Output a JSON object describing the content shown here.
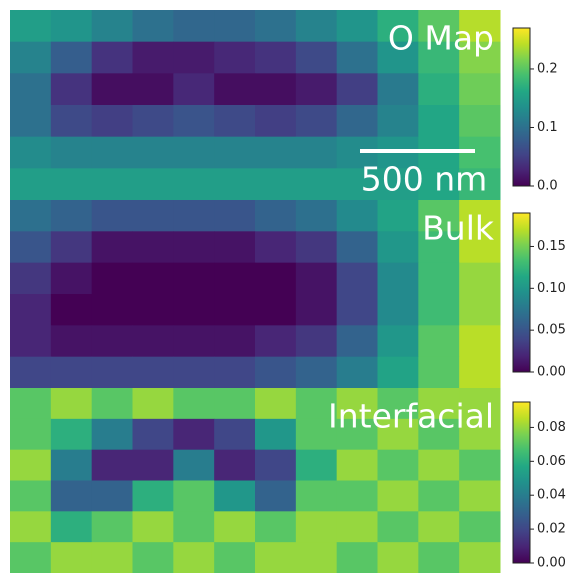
{
  "chart_data": [
    {
      "type": "heatmap",
      "title": "O Map",
      "scale_bar": "500 nm",
      "colormap": "viridis",
      "zlim": [
        0,
        0.27
      ],
      "zticks": [
        {
          "value": 0,
          "label": "0.0"
        },
        0.1,
        0.2
      ],
      "values": [
        [
          0.15,
          0.14,
          0.12,
          0.1,
          0.09,
          0.09,
          0.1,
          0.12,
          0.14,
          0.17,
          0.2,
          0.24
        ],
        [
          0.12,
          0.08,
          0.04,
          0.02,
          0.02,
          0.03,
          0.04,
          0.06,
          0.1,
          0.14,
          0.18,
          0.22
        ],
        [
          0.1,
          0.04,
          0.01,
          0.01,
          0.03,
          0.01,
          0.01,
          0.02,
          0.05,
          0.11,
          0.17,
          0.21
        ],
        [
          0.1,
          0.06,
          0.05,
          0.06,
          0.07,
          0.06,
          0.05,
          0.06,
          0.09,
          0.12,
          0.16,
          0.2
        ],
        [
          0.13,
          0.12,
          0.12,
          0.12,
          0.12,
          0.12,
          0.12,
          0.12,
          0.13,
          0.14,
          0.16,
          0.19
        ],
        [
          0.15,
          0.15,
          0.15,
          0.15,
          0.15,
          0.15,
          0.15,
          0.15,
          0.15,
          0.15,
          0.16,
          0.18
        ]
      ]
    },
    {
      "type": "heatmap",
      "title": "Bulk",
      "colormap": "viridis",
      "zlim": [
        0,
        0.19
      ],
      "zticks": [
        {
          "value": 0,
          "label": "0.00"
        },
        0.05,
        {
          "value": 0.1,
          "label": "0.10"
        },
        0.15
      ],
      "values": [
        [
          0.07,
          0.06,
          0.05,
          0.05,
          0.05,
          0.05,
          0.06,
          0.07,
          0.09,
          0.11,
          0.14,
          0.17
        ],
        [
          0.05,
          0.03,
          0.01,
          0.01,
          0.01,
          0.01,
          0.02,
          0.03,
          0.06,
          0.1,
          0.13,
          0.17
        ],
        [
          0.03,
          0.01,
          0.0,
          0.0,
          0.0,
          0.0,
          0.0,
          0.01,
          0.04,
          0.09,
          0.13,
          0.16
        ],
        [
          0.02,
          0.0,
          0.0,
          0.0,
          0.0,
          0.0,
          0.0,
          0.01,
          0.04,
          0.09,
          0.13,
          0.16
        ],
        [
          0.02,
          0.01,
          0.01,
          0.01,
          0.01,
          0.01,
          0.02,
          0.03,
          0.06,
          0.1,
          0.14,
          0.17
        ],
        [
          0.04,
          0.04,
          0.04,
          0.04,
          0.04,
          0.04,
          0.05,
          0.06,
          0.08,
          0.11,
          0.14,
          0.17
        ]
      ]
    },
    {
      "type": "heatmap",
      "title": "Interfacial",
      "colormap": "viridis",
      "zlim": [
        0,
        0.095
      ],
      "zticks": [
        {
          "value": 0,
          "label": "0.00"
        },
        0.02,
        0.04,
        0.06,
        0.08
      ],
      "values": [
        [
          0.07,
          0.08,
          0.07,
          0.08,
          0.07,
          0.07,
          0.08,
          0.07,
          0.08,
          0.07,
          0.08,
          0.08
        ],
        [
          0.07,
          0.06,
          0.04,
          0.02,
          0.01,
          0.02,
          0.05,
          0.07,
          0.07,
          0.08,
          0.07,
          0.08
        ],
        [
          0.08,
          0.04,
          0.01,
          0.01,
          0.04,
          0.01,
          0.02,
          0.06,
          0.08,
          0.07,
          0.08,
          0.07
        ],
        [
          0.07,
          0.03,
          0.03,
          0.06,
          0.07,
          0.05,
          0.03,
          0.07,
          0.07,
          0.08,
          0.07,
          0.08
        ],
        [
          0.08,
          0.06,
          0.07,
          0.08,
          0.07,
          0.08,
          0.07,
          0.08,
          0.08,
          0.07,
          0.08,
          0.07
        ],
        [
          0.07,
          0.08,
          0.08,
          0.07,
          0.08,
          0.07,
          0.08,
          0.08,
          0.07,
          0.08,
          0.07,
          0.08
        ]
      ]
    }
  ]
}
